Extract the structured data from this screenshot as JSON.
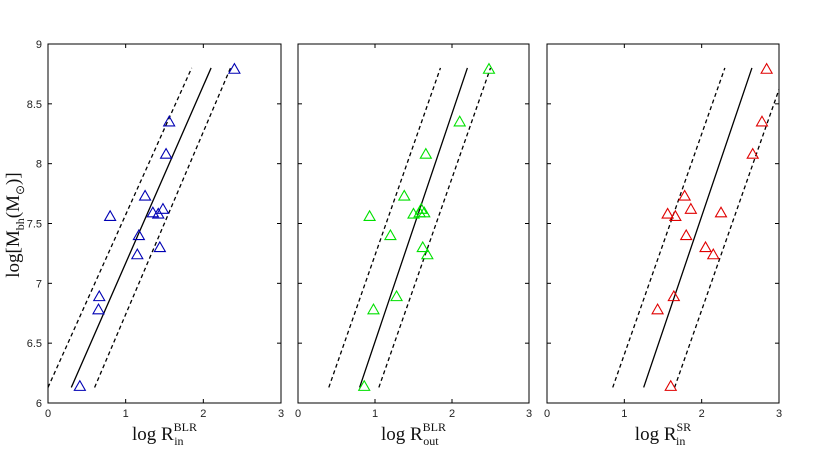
{
  "chart_data": [
    {
      "type": "scatter",
      "xlabel": {
        "base": "log R",
        "sub": "in",
        "sup": "BLR"
      },
      "ylabel": {
        "base": "log[M",
        "sub": "bh",
        "mid": "(M",
        "sun": "⊙",
        "end": ")]"
      },
      "xlim": [
        0,
        3
      ],
      "ylim": [
        6,
        9
      ],
      "xticks": [
        "0",
        "1",
        "2",
        "3"
      ],
      "yticks": [
        "6",
        "6.5",
        "7",
        "7.5",
        "8",
        "8.5",
        "9"
      ],
      "marker": "triangle-open",
      "color": "#0000b4",
      "points": [
        [
          0.41,
          6.14
        ],
        [
          0.65,
          6.78
        ],
        [
          0.66,
          6.89
        ],
        [
          0.8,
          7.56
        ],
        [
          1.15,
          7.24
        ],
        [
          1.17,
          7.4
        ],
        [
          1.25,
          7.73
        ],
        [
          1.35,
          7.59
        ],
        [
          1.42,
          7.58
        ],
        [
          1.44,
          7.3
        ],
        [
          1.48,
          7.62
        ],
        [
          1.52,
          8.08
        ],
        [
          1.56,
          8.35
        ],
        [
          2.4,
          8.79
        ]
      ],
      "fit_line": [
        [
          0.3,
          6.13
        ],
        [
          2.1,
          8.8
        ]
      ],
      "scatter_bounds": [
        {
          "style": "dashed",
          "points": [
            [
              0.0,
              6.13
            ],
            [
              1.85,
              8.8
            ]
          ]
        },
        {
          "style": "dashed",
          "points": [
            [
              0.6,
              6.13
            ],
            [
              2.35,
              8.8
            ]
          ]
        }
      ]
    },
    {
      "type": "scatter",
      "xlabel": {
        "base": "log R",
        "sub": "out",
        "sup": "BLR"
      },
      "ylabel": null,
      "xlim": [
        0,
        3
      ],
      "ylim": [
        6,
        9
      ],
      "xticks": [
        "0",
        "1",
        "2",
        "3"
      ],
      "yticks": [],
      "marker": "triangle-open",
      "color": "#00e000",
      "points": [
        [
          0.86,
          6.14
        ],
        [
          0.93,
          7.56
        ],
        [
          0.98,
          6.78
        ],
        [
          1.2,
          7.4
        ],
        [
          1.28,
          6.89
        ],
        [
          1.38,
          7.73
        ],
        [
          1.5,
          7.58
        ],
        [
          1.58,
          7.59
        ],
        [
          1.6,
          7.62
        ],
        [
          1.62,
          7.3
        ],
        [
          1.64,
          7.59
        ],
        [
          1.66,
          8.08
        ],
        [
          1.68,
          7.24
        ],
        [
          2.1,
          8.35
        ],
        [
          2.48,
          8.79
        ]
      ],
      "fit_line": [
        [
          0.8,
          6.13
        ],
        [
          2.2,
          8.8
        ]
      ],
      "scatter_bounds": [
        {
          "style": "dashed",
          "points": [
            [
              0.4,
              6.13
            ],
            [
              1.85,
              8.8
            ]
          ]
        },
        {
          "style": "dashed",
          "points": [
            [
              1.05,
              6.13
            ],
            [
              2.5,
              8.8
            ]
          ]
        }
      ]
    },
    {
      "type": "scatter",
      "xlabel": {
        "base": "log R",
        "sub": "in",
        "sup": "SR"
      },
      "ylabel": null,
      "xlim": [
        0,
        3
      ],
      "ylim": [
        6,
        9
      ],
      "xticks": [
        "0",
        "1",
        "2",
        "3"
      ],
      "yticks": [],
      "marker": "triangle-open",
      "color": "#e00000",
      "points": [
        [
          1.43,
          6.78
        ],
        [
          1.56,
          7.58
        ],
        [
          1.6,
          6.14
        ],
        [
          1.64,
          6.89
        ],
        [
          1.66,
          7.56
        ],
        [
          1.78,
          7.73
        ],
        [
          1.8,
          7.4
        ],
        [
          1.86,
          7.62
        ],
        [
          2.05,
          7.3
        ],
        [
          2.15,
          7.24
        ],
        [
          2.25,
          7.59
        ],
        [
          2.66,
          8.08
        ],
        [
          2.78,
          8.35
        ],
        [
          2.84,
          8.79
        ]
      ],
      "fit_line": [
        [
          1.25,
          6.13
        ],
        [
          2.65,
          8.8
        ]
      ],
      "scatter_bounds": [
        {
          "style": "dashed",
          "points": [
            [
              0.85,
              6.13
            ],
            [
              2.3,
              8.8
            ]
          ]
        },
        {
          "style": "dashed",
          "points": [
            [
              1.65,
              6.13
            ],
            [
              3.0,
              8.62
            ]
          ]
        }
      ]
    }
  ]
}
